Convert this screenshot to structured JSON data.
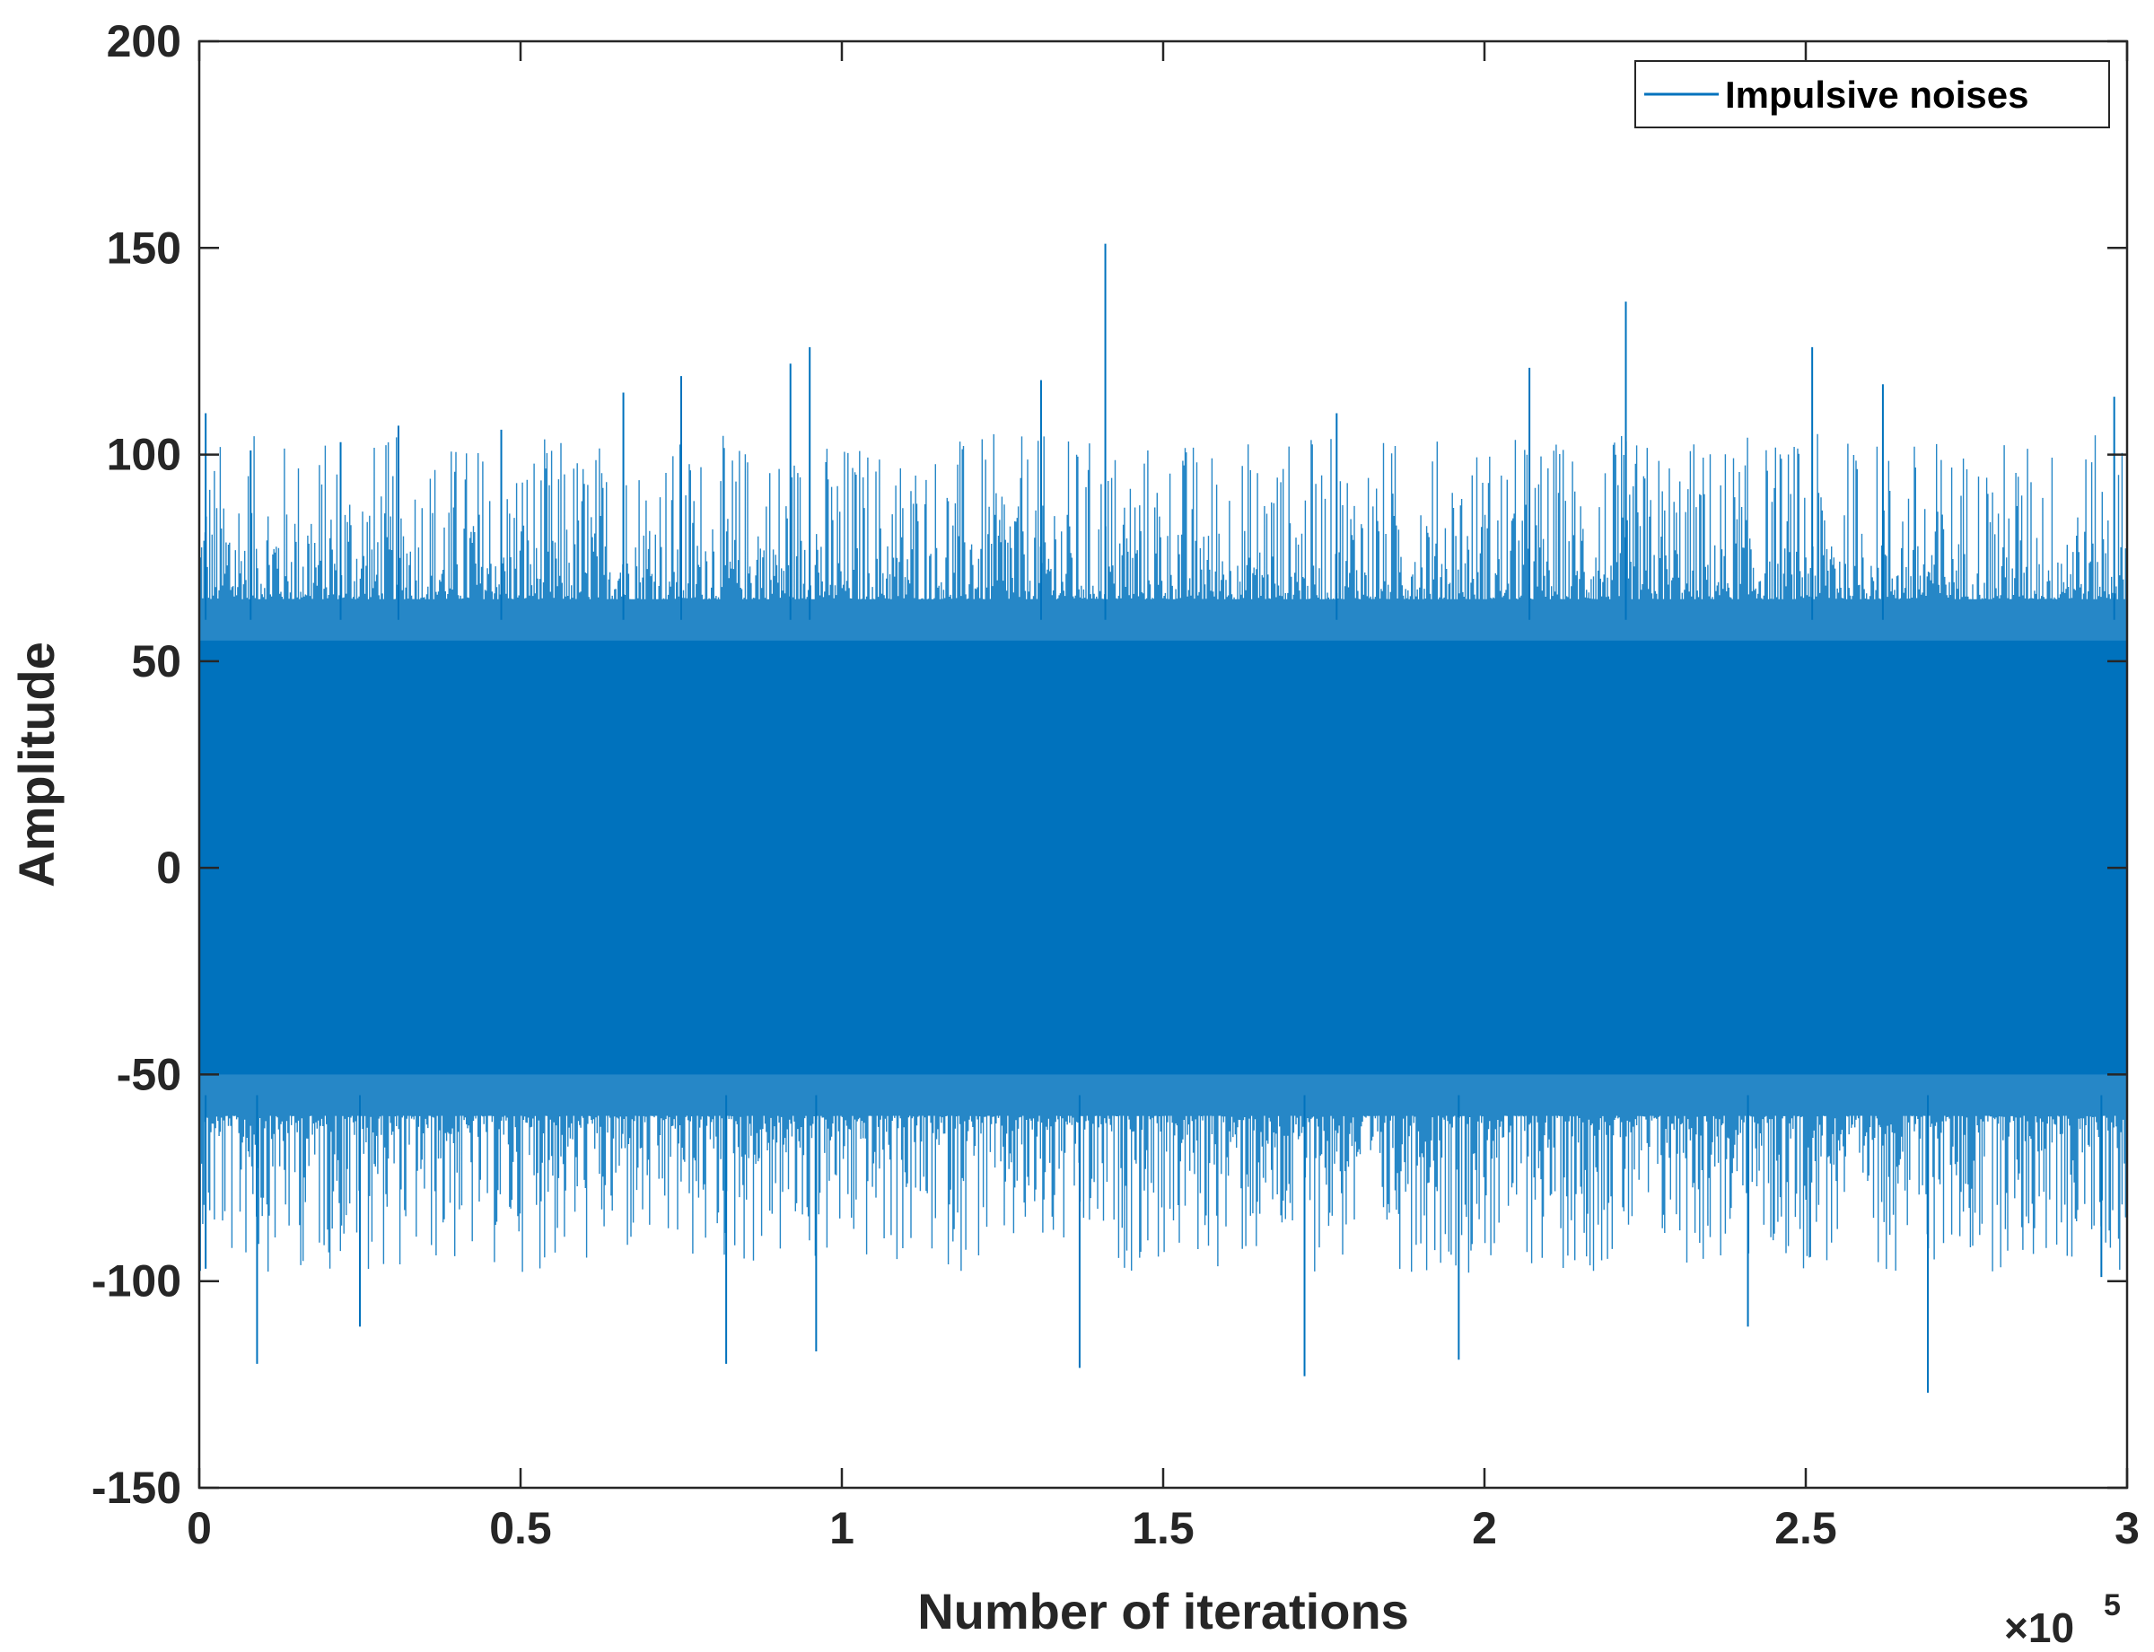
{
  "chart_data": {
    "type": "line",
    "xlabel": "Number of iterations",
    "ylabel": "Amplitude",
    "x_exponent_label": {
      "base": "×10",
      "exponent": "5"
    },
    "xlim": [
      0,
      300000
    ],
    "ylim": [
      -150,
      200
    ],
    "x_ticks": [
      0,
      50000,
      100000,
      150000,
      200000,
      250000,
      300000
    ],
    "x_tick_labels": [
      "0",
      "0.5",
      "1",
      "1.5",
      "2",
      "2.5",
      "3"
    ],
    "y_ticks": [
      -150,
      -100,
      -50,
      0,
      50,
      100,
      150,
      200
    ],
    "y_tick_labels": [
      "-150",
      "-100",
      "-50",
      "0",
      "50",
      "100",
      "150",
      "200"
    ],
    "grid": false,
    "legend": {
      "position": "top-right",
      "entries": [
        "Impulsive noises"
      ]
    },
    "series": [
      {
        "name": "Impulsive noises",
        "color": "#0072BD",
        "typical_range": [
          -65,
          70
        ],
        "peaks": [
          {
            "x": 1000,
            "y": 110
          },
          {
            "x": 8000,
            "y": 101
          },
          {
            "x": 22000,
            "y": 103
          },
          {
            "x": 31000,
            "y": 107
          },
          {
            "x": 47000,
            "y": 106
          },
          {
            "x": 66000,
            "y": 115
          },
          {
            "x": 75000,
            "y": 119
          },
          {
            "x": 92000,
            "y": 122
          },
          {
            "x": 95000,
            "y": 126
          },
          {
            "x": 131000,
            "y": 118
          },
          {
            "x": 141000,
            "y": 151
          },
          {
            "x": 177000,
            "y": 110
          },
          {
            "x": 207000,
            "y": 121
          },
          {
            "x": 222000,
            "y": 137
          },
          {
            "x": 251000,
            "y": 126
          },
          {
            "x": 262000,
            "y": 117
          },
          {
            "x": 298000,
            "y": 114
          }
        ],
        "troughs": [
          {
            "x": 1000,
            "y": -97
          },
          {
            "x": 9000,
            "y": -120
          },
          {
            "x": 25000,
            "y": -111
          },
          {
            "x": 82000,
            "y": -120
          },
          {
            "x": 96000,
            "y": -117
          },
          {
            "x": 137000,
            "y": -121
          },
          {
            "x": 172000,
            "y": -123
          },
          {
            "x": 196000,
            "y": -119
          },
          {
            "x": 241000,
            "y": -111
          },
          {
            "x": 269000,
            "y": -127
          },
          {
            "x": 296000,
            "y": -99
          }
        ]
      }
    ]
  }
}
